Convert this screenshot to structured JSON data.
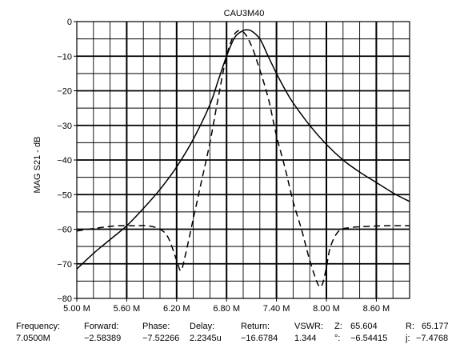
{
  "chart_data": {
    "type": "line",
    "title": "CAU3M40",
    "xlabel": "",
    "ylabel": "MAG S21 - dB",
    "xlim": [
      5.0,
      9.0
    ],
    "ylim": [
      -80,
      0
    ],
    "grid": true,
    "x_ticks": [
      5.0,
      5.6,
      6.2,
      6.8,
      7.4,
      8.0,
      8.6
    ],
    "x_tick_labels": [
      "5.00 M",
      "5.60 M",
      "6.20 M",
      "6.80 M",
      "7.40 M",
      "8.00 M",
      "8.60 M"
    ],
    "y_ticks": [
      0,
      -10,
      -20,
      -30,
      -40,
      -50,
      -60,
      -70,
      -80
    ],
    "y_tick_labels": [
      "0",
      "−10",
      "−20",
      "−30",
      "−40",
      "−50",
      "−60",
      "−70",
      "−80"
    ],
    "series": [
      {
        "style": "solid",
        "x": [
          5.0,
          5.2,
          5.4,
          5.6,
          5.8,
          6.0,
          6.2,
          6.4,
          6.6,
          6.7,
          6.8,
          6.9,
          7.0,
          7.05,
          7.1,
          7.2,
          7.3,
          7.4,
          7.5,
          7.6,
          7.8,
          8.0,
          8.2,
          8.4,
          8.6,
          8.8,
          9.0
        ],
        "values": [
          -71.5,
          -67,
          -63,
          -59,
          -54,
          -48.5,
          -42,
          -34,
          -24,
          -17,
          -10,
          -4.5,
          -2.6,
          -2.4,
          -2.7,
          -5,
          -10,
          -15,
          -19.5,
          -23.5,
          -30,
          -35.5,
          -40,
          -43.5,
          -46.5,
          -49.5,
          -52
        ]
      },
      {
        "style": "dashed",
        "x": [
          5.0,
          5.3,
          5.5,
          5.7,
          5.85,
          6.0,
          6.1,
          6.2,
          6.25,
          6.3,
          6.4,
          6.5,
          6.6,
          6.7,
          6.8,
          6.9,
          7.0,
          7.1,
          7.2,
          7.3,
          7.4,
          7.5,
          7.6,
          7.7,
          7.8,
          7.9,
          7.95,
          8.0,
          8.05,
          8.15,
          8.3,
          8.5,
          8.7,
          9.0
        ],
        "values": [
          -60.5,
          -59.5,
          -59,
          -59,
          -59,
          -60,
          -62.5,
          -69,
          -72,
          -68,
          -57,
          -46,
          -35,
          -22,
          -10,
          -3.5,
          -3,
          -7,
          -14,
          -22,
          -33,
          -42,
          -52,
          -60,
          -69,
          -76,
          -76,
          -71,
          -65,
          -60.5,
          -59.5,
          -59.2,
          -59,
          -59
        ]
      }
    ]
  },
  "readout": {
    "labels": {
      "frequency": "Frequency:",
      "forward": "Forward:",
      "phase": "Phase:",
      "delay": "Delay:",
      "return": "Return:",
      "vswr": "VSWR:",
      "z": "Z:",
      "r": "R:",
      "deg": "°:",
      "j": "j:"
    },
    "values": {
      "frequency": "7.0500M",
      "forward": "−2.58389",
      "phase": "−7.52266",
      "delay": "2.2345u",
      "return": "−16.6784",
      "vswr": "1.344",
      "z": "65.604",
      "r": "65.177",
      "deg": "−6.54415",
      "j": "−7.4768"
    }
  }
}
